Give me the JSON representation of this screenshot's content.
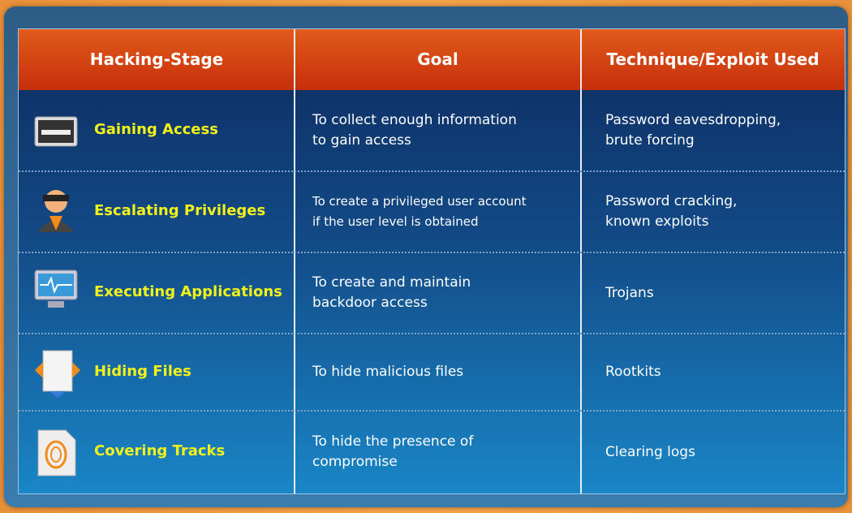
{
  "table": {
    "header": [
      "Hacking-Stage",
      "Goal",
      "Technique/Exploit Used"
    ],
    "rows": [
      [
        "Gaining Access",
        [
          "To collect enough information",
          "to gain access"
        ],
        [
          "Password eavesdropping,",
          "brute forcing"
        ]
      ],
      [
        "Escalating Privileges",
        [
          "To create a privileged user account",
          "if the user level is obtained"
        ],
        [
          "Password cracking,",
          "known exploits"
        ]
      ],
      [
        "Executing Applications",
        [
          "To create and maintain",
          "backdoor access"
        ],
        [
          "Trojans"
        ]
      ],
      [
        "Hiding Files",
        [
          "To hide malicious files"
        ],
        [
          "Rootkits"
        ]
      ],
      [
        "Covering Tracks",
        [
          "To hide the presence of",
          "compromise"
        ],
        [
          "Clearing logs"
        ]
      ]
    ]
  }
}
